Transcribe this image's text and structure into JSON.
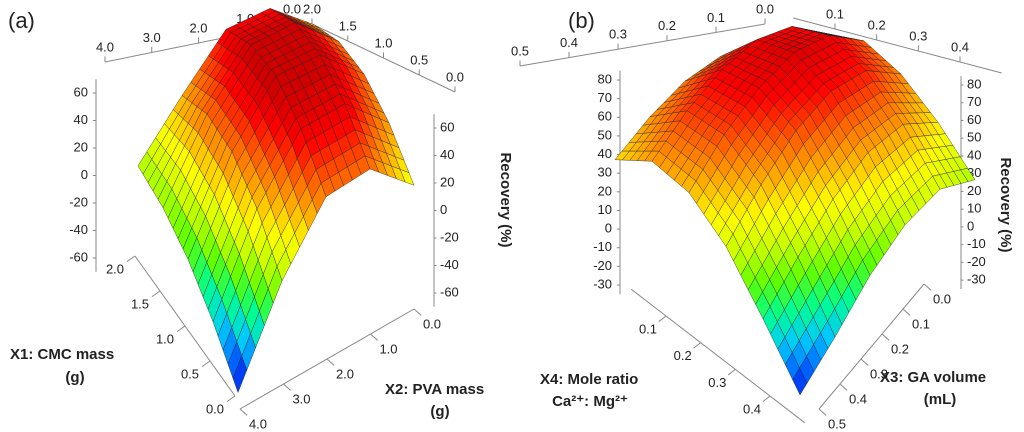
{
  "chart_data": [
    {
      "type": "surface",
      "panel_label": "(a)",
      "x_label": [
        "X1: CMC mass",
        "(g)"
      ],
      "y_label": [
        "X2: PVA mass",
        "(g)"
      ],
      "z_label": "Recovery (%)",
      "x": [
        0,
        0.5,
        1,
        1.5,
        2
      ],
      "y": [
        0,
        1,
        2,
        3,
        4
      ],
      "z": [
        [
          10,
          30,
          40,
          38,
          25
        ],
        [
          40,
          62,
          72,
          70,
          55
        ],
        [
          38,
          62,
          75,
          72,
          58
        ],
        [
          -5,
          22,
          38,
          40,
          28
        ],
        [
          -68,
          -42,
          -22,
          -10,
          -5
        ]
      ],
      "xlim": [
        0,
        2
      ],
      "xticks": [
        {
          "value": 0,
          "label": "0.0"
        },
        {
          "value": 0.5,
          "label": "0.5"
        },
        {
          "value": 1,
          "label": "1.0"
        },
        {
          "value": 1.5,
          "label": "1.5"
        },
        {
          "value": 2,
          "label": "2.0"
        }
      ],
      "ylim": [
        0,
        4
      ],
      "yticks": [
        {
          "value": 0,
          "label": "0.0"
        },
        {
          "value": 1,
          "label": "1.0"
        },
        {
          "value": 2,
          "label": "2.0"
        },
        {
          "value": 3,
          "label": "3.0"
        },
        {
          "value": 4,
          "label": "4.0"
        }
      ],
      "zlim": [
        -70,
        70
      ],
      "zticks": [
        -60,
        -40,
        -20,
        0,
        20,
        40,
        60
      ],
      "colormap": [
        "#0000c8",
        "#0050ff",
        "#00c8ff",
        "#00ff90",
        "#60ff00",
        "#c8ff00",
        "#ffff00",
        "#ffb000",
        "#ff6000",
        "#ff0000",
        "#d00000"
      ]
    },
    {
      "type": "surface",
      "panel_label": "(b)",
      "x_label": [
        "X4: Mole ratio",
        "Ca²⁺: Mg²⁺"
      ],
      "y_label": [
        "X3: GA volume",
        "(mL)"
      ],
      "z_label": "Recovery (%)",
      "x": [
        0,
        0.1,
        0.2,
        0.3,
        0.4,
        0.5
      ],
      "y": [
        0,
        0.1,
        0.2,
        0.3,
        0.4,
        0.5
      ],
      "z": [
        [
          30,
          55,
          62,
          55,
          40,
          20
        ],
        [
          50,
          72,
          78,
          70,
          52,
          28
        ],
        [
          58,
          78,
          82,
          72,
          50,
          22
        ],
        [
          58,
          75,
          76,
          64,
          38,
          8
        ],
        [
          52,
          66,
          64,
          48,
          20,
          -12
        ],
        [
          42,
          52,
          46,
          28,
          0,
          -30
        ]
      ],
      "xlim": [
        0,
        0.5
      ],
      "xticks": [
        {
          "value": 0,
          "label": "0.0"
        },
        {
          "value": 0.1,
          "label": "0.1"
        },
        {
          "value": 0.2,
          "label": "0.2"
        },
        {
          "value": 0.3,
          "label": "0.3"
        },
        {
          "value": 0.4,
          "label": "0.4"
        },
        {
          "value": 0.5,
          "label": "0.5"
        }
      ],
      "ylim": [
        0,
        0.5
      ],
      "yticks": [
        {
          "value": 0,
          "label": "0.0"
        },
        {
          "value": 0.1,
          "label": "0.1"
        },
        {
          "value": 0.2,
          "label": "0.2"
        },
        {
          "value": 0.3,
          "label": "0.3"
        },
        {
          "value": 0.4,
          "label": "0.4"
        },
        {
          "value": 0.5,
          "label": "0.5"
        }
      ],
      "zlim": [
        -35,
        85
      ],
      "zticks": [
        -30,
        -20,
        -10,
        0,
        10,
        20,
        30,
        40,
        50,
        60,
        70,
        80
      ],
      "colormap": [
        "#0000c8",
        "#0050ff",
        "#00c8ff",
        "#00ff90",
        "#60ff00",
        "#c8ff00",
        "#ffff00",
        "#ffb000",
        "#ff6000",
        "#ff0000",
        "#d00000"
      ]
    }
  ]
}
